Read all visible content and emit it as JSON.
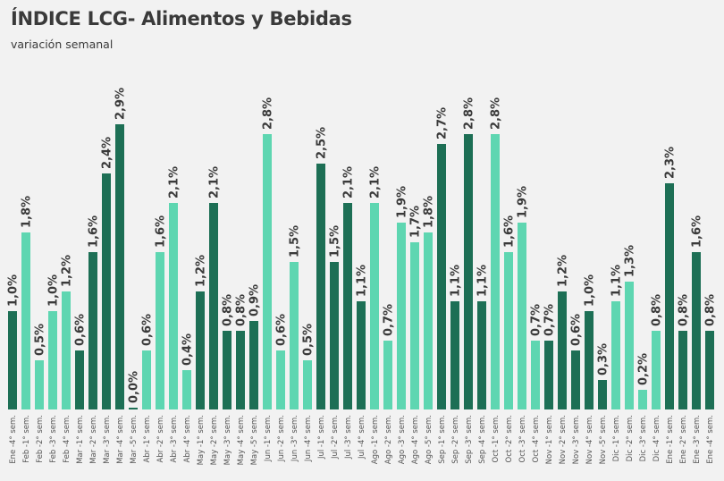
{
  "header": {
    "title": "ÍNDICE LCG- Alimentos y Bebidas",
    "subtitle": "variación semanal"
  },
  "colors": {
    "dark": "#1d6f55",
    "light": "#5ed6b1",
    "background": "#f2f2f2"
  },
  "chart_data": {
    "type": "bar",
    "title": "ÍNDICE LCG- Alimentos y Bebidas",
    "subtitle": "variación semanal",
    "xlabel": "",
    "ylabel": "",
    "ylim": [
      0,
      3.0
    ],
    "grid": false,
    "legend": "none",
    "categories": [
      "Ene -4° sem.",
      "Feb -1° sem.",
      "Feb -2° sem.",
      "Feb -3° sem.",
      "Feb -4° sem.",
      "Mar -1° sem.",
      "Mar -2° sem.",
      "Mar -3° sem.",
      "Mar -4° sem.",
      "Mar -5° sem.",
      "Abr -1° sem.",
      "Abr -2° sem.",
      "Abr -3° sem.",
      "Abr -4° sem.",
      "May -1° sem.",
      "May -2° sem.",
      "May -3° sem.",
      "May -4° sem.",
      "May -5° sem.",
      "Jun -1° sem.",
      "Jun -2° sem.",
      "Jun -3° sem.",
      "Jun -4° sem.",
      "Jul -1° sem.",
      "Jul -2° sem.",
      "Jul -3° sem.",
      "Jul -4° sem.",
      "Ago -1° sem.",
      "Ago -2° sem.",
      "Ago -3° sem.",
      "Ago -4° sem.",
      "Ago -5° sem.",
      "Sep -1° sem.",
      "Sep -2° sem.",
      "Sep -3° sem.",
      "Sep -4° sem.",
      "Oct -1° sem.",
      "Oct -2° sem.",
      "Oct -3° sem.",
      "Oct -4° sem.",
      "Nov -1° sem.",
      "Nov -2° sem.",
      "Nov -3° sem.",
      "Nov -4° sem.",
      "Nov -5° sem.",
      "Dic -1° sem.",
      "Dic -2° sem.",
      "Dic -3° sem.",
      "Dic -4° sem.",
      "Ene -1° sem.",
      "Ene -2° sem.",
      "Ene -3° sem.",
      "Ene -4° sem."
    ],
    "values": [
      1.0,
      1.8,
      0.5,
      1.0,
      1.2,
      0.6,
      1.6,
      2.4,
      2.9,
      0.0,
      0.6,
      1.6,
      2.1,
      0.4,
      1.2,
      2.1,
      0.8,
      0.8,
      0.9,
      2.8,
      0.6,
      1.5,
      0.5,
      2.5,
      1.5,
      2.1,
      1.1,
      2.1,
      0.7,
      1.9,
      1.7,
      1.8,
      2.7,
      1.1,
      2.8,
      1.1,
      2.8,
      1.6,
      1.9,
      0.7,
      0.7,
      1.2,
      0.6,
      1.0,
      0.3,
      1.1,
      1.3,
      0.2,
      0.8,
      2.3,
      0.8,
      1.6,
      0.8
    ],
    "labels": [
      "1,0%",
      "1,8%",
      "0,5%",
      "1,0%",
      "1,2%",
      "0,6%",
      "1,6%",
      "2,4%",
      "2,9%",
      "0,0%",
      "0,6%",
      "1,6%",
      "2,1%",
      "0,4%",
      "1,2%",
      "2,1%",
      "0,8%",
      "0,8%",
      "0,9%",
      "2,8%",
      "0,6%",
      "1,5%",
      "0,5%",
      "2,5%",
      "1,5%",
      "2,1%",
      "1,1%",
      "2,1%",
      "0,7%",
      "1,9%",
      "1,7%",
      "1,8%",
      "2,7%",
      "1,1%",
      "2,8%",
      "1,1%",
      "2,8%",
      "1,6%",
      "1,9%",
      "0,7%",
      "0,7%",
      "1,2%",
      "0,6%",
      "1,0%",
      "0,3%",
      "1,1%",
      "1,3%",
      "0,2%",
      "0,8%",
      "2,3%",
      "0,8%",
      "1,6%",
      "0,8%"
    ],
    "color_group": [
      "dark",
      "light",
      "light",
      "light",
      "light",
      "dark",
      "dark",
      "dark",
      "dark",
      "dark",
      "light",
      "light",
      "light",
      "light",
      "dark",
      "dark",
      "dark",
      "dark",
      "dark",
      "light",
      "light",
      "light",
      "light",
      "dark",
      "dark",
      "dark",
      "dark",
      "light",
      "light",
      "light",
      "light",
      "light",
      "dark",
      "dark",
      "dark",
      "dark",
      "light",
      "light",
      "light",
      "light",
      "dark",
      "dark",
      "dark",
      "dark",
      "dark",
      "light",
      "light",
      "light",
      "light",
      "dark",
      "dark",
      "dark",
      "dark"
    ]
  }
}
